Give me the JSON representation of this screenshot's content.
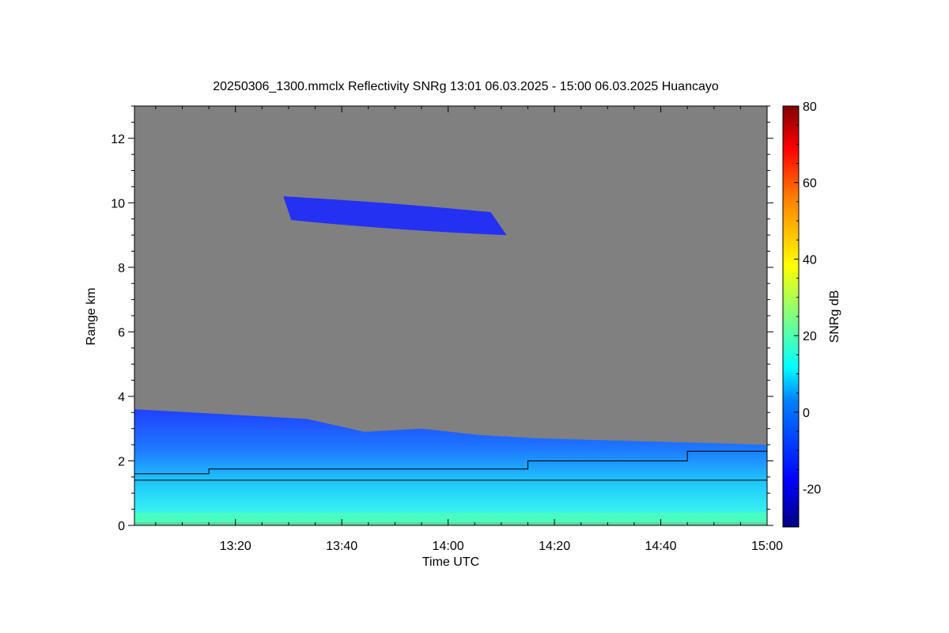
{
  "chart_data": {
    "type": "heatmap",
    "title": "20250306_1300.mmclx Reflectivity SNRg   13:01 06.03.2025 - 15:00 06.03.2025 Huancayo",
    "xlabel": "Time UTC",
    "ylabel": "Range km",
    "colorbar_label": "SNRg dB",
    "xlim": [
      "13:01",
      "15:00"
    ],
    "ylim": [
      0,
      13
    ],
    "x_ticks": [
      "13:20",
      "13:40",
      "14:00",
      "14:20",
      "14:40",
      "15:00"
    ],
    "y_ticks": [
      "0",
      "2",
      "4",
      "6",
      "8",
      "10",
      "12"
    ],
    "colorbar_range": [
      -30,
      80
    ],
    "colorbar_ticks": [
      "-20",
      "0",
      "20",
      "40",
      "60",
      "80"
    ],
    "background_color": "#808080",
    "layers": [
      {
        "name": "low_cloud",
        "x_start": "13:01",
        "x_end": "15:00",
        "bottom_km": 0.1,
        "top_km": [
          3.6,
          3.5,
          3.4,
          3.3,
          2.9,
          3.0,
          2.8,
          2.7,
          2.65,
          2.6,
          2.55,
          2.5
        ],
        "typical_snr_db": [
          -15,
          10
        ]
      },
      {
        "name": "cirrus",
        "x_start": "13:29",
        "x_end": "14:11",
        "bottom_km": 8.9,
        "top_km": 10.2,
        "typical_snr_db": [
          -22,
          -15
        ]
      }
    ],
    "lines": [
      {
        "kind": "step",
        "points": [
          [
            "13:01",
            1.6
          ],
          [
            "13:15",
            1.6
          ],
          [
            "13:15",
            1.75
          ],
          [
            "14:15",
            1.75
          ],
          [
            "14:15",
            2.0
          ],
          [
            "14:45",
            2.0
          ],
          [
            "14:45",
            2.3
          ],
          [
            "15:00",
            2.3
          ]
        ]
      },
      {
        "kind": "flat",
        "points": [
          [
            "13:01",
            1.4
          ],
          [
            "15:00",
            1.4
          ]
        ]
      }
    ]
  }
}
